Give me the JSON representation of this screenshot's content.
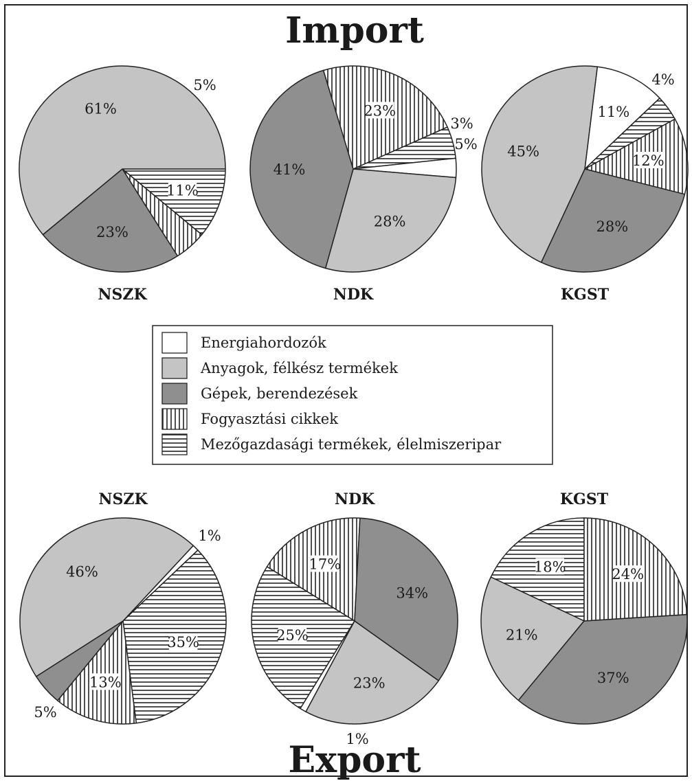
{
  "import_title": "Import",
  "export_title": "Export",
  "legend": [
    {
      "key": "energy",
      "label": "Energiahordozók",
      "fill": "#ffffff",
      "pattern": "none"
    },
    {
      "key": "materials",
      "label": "Anyagok, félkész termékek",
      "fill": "#c4c4c4",
      "pattern": "none"
    },
    {
      "key": "machines",
      "label": "Gépek, berendezések",
      "fill": "#8f8f8f",
      "pattern": "none"
    },
    {
      "key": "consumer",
      "label": "Fogyasztási cikkek",
      "fill": "#ffffff",
      "pattern": "vertical"
    },
    {
      "key": "agri",
      "label": "Mezőgazdasági termékek, élelmiszeripar",
      "fill": "#ffffff",
      "pattern": "horizontal"
    }
  ],
  "chart_data": [
    {
      "type": "pie",
      "group": "Import",
      "title": "NSZK",
      "slices": [
        {
          "category": "energy",
          "value": 0,
          "label": ""
        },
        {
          "category": "materials",
          "value": 61,
          "label": "61%"
        },
        {
          "category": "machines",
          "value": 23,
          "label": "23%"
        },
        {
          "category": "consumer",
          "value": 5,
          "label": "5%"
        },
        {
          "category": "agri",
          "value": 11,
          "label": "11%"
        }
      ]
    },
    {
      "type": "pie",
      "group": "Import",
      "title": "NDK",
      "slices": [
        {
          "category": "energy",
          "value": 3,
          "label": "3%"
        },
        {
          "category": "materials",
          "value": 28,
          "label": "28%"
        },
        {
          "category": "machines",
          "value": 41,
          "label": "41%"
        },
        {
          "category": "consumer",
          "value": 23,
          "label": "23%"
        },
        {
          "category": "agri",
          "value": 5,
          "label": "5%"
        }
      ]
    },
    {
      "type": "pie",
      "group": "Import",
      "title": "KGST",
      "slices": [
        {
          "category": "energy",
          "value": 11,
          "label": "11%"
        },
        {
          "category": "materials",
          "value": 45,
          "label": "45%"
        },
        {
          "category": "machines",
          "value": 28,
          "label": "28%"
        },
        {
          "category": "consumer",
          "value": 12,
          "label": "12%"
        },
        {
          "category": "agri",
          "value": 4,
          "label": "4%"
        }
      ]
    },
    {
      "type": "pie",
      "group": "Export",
      "title": "NSZK",
      "slices": [
        {
          "category": "energy",
          "value": 1,
          "label": "1%"
        },
        {
          "category": "materials",
          "value": 46,
          "label": "46%"
        },
        {
          "category": "machines",
          "value": 5,
          "label": "5%"
        },
        {
          "category": "consumer",
          "value": 13,
          "label": "13%"
        },
        {
          "category": "agri",
          "value": 35,
          "label": "35%"
        }
      ]
    },
    {
      "type": "pie",
      "group": "Export",
      "title": "NDK",
      "slices": [
        {
          "category": "energy",
          "value": 1,
          "label": "1%"
        },
        {
          "category": "materials",
          "value": 23,
          "label": "23%"
        },
        {
          "category": "machines",
          "value": 34,
          "label": "34%"
        },
        {
          "category": "consumer",
          "value": 17,
          "label": "17%"
        },
        {
          "category": "agri",
          "value": 25,
          "label": "25%"
        }
      ]
    },
    {
      "type": "pie",
      "group": "Export",
      "title": "KGST",
      "slices": [
        {
          "category": "energy",
          "value": 0,
          "label": ""
        },
        {
          "category": "materials",
          "value": 21,
          "label": "21%"
        },
        {
          "category": "machines",
          "value": 37,
          "label": "37%"
        },
        {
          "category": "consumer",
          "value": 24,
          "label": "24%"
        },
        {
          "category": "agri",
          "value": 18,
          "label": "18%"
        }
      ]
    }
  ]
}
